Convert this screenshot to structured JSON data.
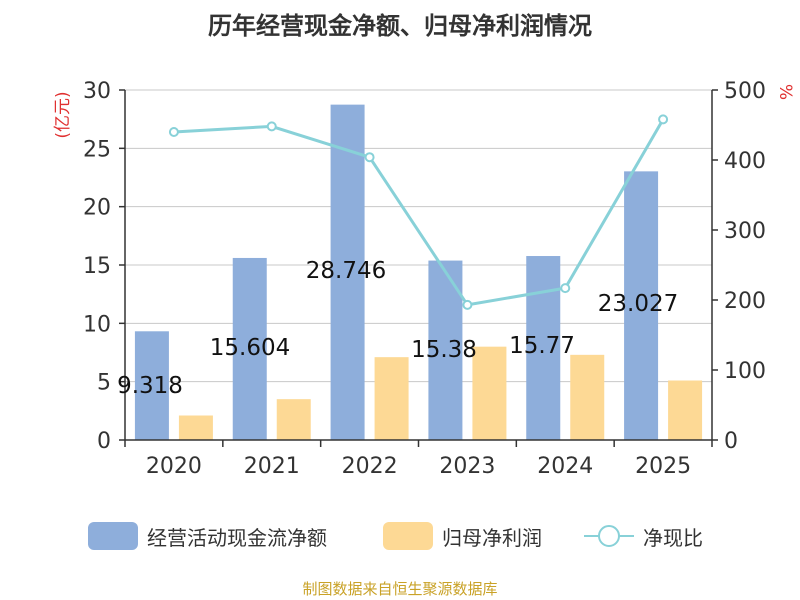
{
  "title": "历年经营现金净额、归母净利润情况",
  "source": "制图数据来自恒生聚源数据库",
  "colors": {
    "bar1": "#8eaedb",
    "bar2": "#fdd995",
    "line": "#88d1d8",
    "axis_right_unit": "#e03030"
  },
  "chart_data": {
    "type": "bar",
    "categories": [
      "2020",
      "2021",
      "2022",
      "2023",
      "2024",
      "2025"
    ],
    "y_left": {
      "label": "(亿元)",
      "ylim": [
        0,
        30
      ],
      "ticks": [
        0,
        5,
        10,
        15,
        20,
        25,
        30
      ]
    },
    "y_right": {
      "label": "%",
      "ylim": [
        0,
        500
      ],
      "ticks": [
        0,
        100,
        200,
        300,
        400,
        500
      ]
    },
    "grid": true,
    "legend_position": "bottom",
    "series": [
      {
        "name": "经营活动现金流净额",
        "type": "bar",
        "axis": "left",
        "values": [
          9.318,
          15.604,
          28.746,
          15.38,
          15.77,
          23.027
        ],
        "labels": [
          "9.318",
          "15.604",
          "28.746",
          "15.38",
          "15.77",
          "23.027"
        ]
      },
      {
        "name": "归母净利润",
        "type": "bar",
        "axis": "left",
        "values": [
          2.1,
          3.5,
          7.1,
          8.0,
          7.3,
          5.1
        ]
      },
      {
        "name": "净现比",
        "type": "line",
        "axis": "right",
        "values": [
          440,
          448,
          404,
          193,
          217,
          458
        ]
      }
    ]
  }
}
